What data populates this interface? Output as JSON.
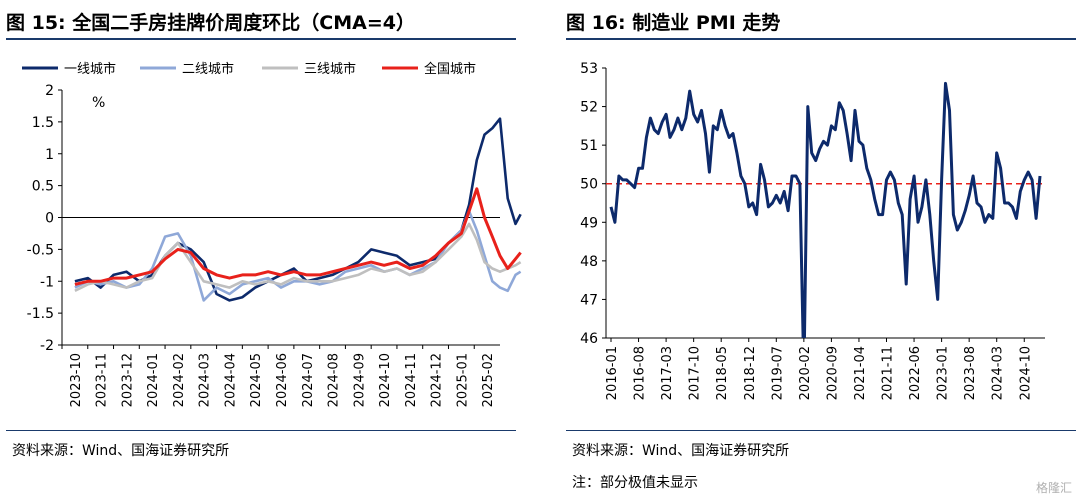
{
  "left": {
    "title": "图 15:  全国二手房挂牌价周度环比（CMA=4）",
    "source": "资料来源：Wind、国海证券研究所",
    "unit": "%",
    "chart_data": {
      "type": "line",
      "ylim": [
        -2,
        2
      ],
      "yticks": [
        "2",
        "1.5",
        "1",
        "0.5",
        "0",
        "-0.5",
        "-1",
        "-1.5",
        "-2"
      ],
      "ytick_values": [
        2,
        1.5,
        1,
        0.5,
        0,
        -0.5,
        -1,
        -1.5,
        -2
      ],
      "xticks": [
        "2023-10",
        "2023-11",
        "2023-12",
        "2024-01",
        "2024-02",
        "2024-03",
        "2024-04",
        "2024-05",
        "2024-06",
        "2024-07",
        "2024-08",
        "2024-09",
        "2024-10",
        "2024-11",
        "2024-12",
        "2025-01",
        "2025-02"
      ],
      "legend_position": "top",
      "x_months": [
        0,
        0.5,
        1,
        1.5,
        2,
        2.5,
        3,
        3.5,
        4,
        4.5,
        5,
        5.5,
        6,
        6.5,
        7,
        7.5,
        8,
        8.5,
        9,
        9.5,
        10,
        10.5,
        11,
        11.5,
        12,
        12.5,
        13,
        13.5,
        14,
        14.5,
        15,
        15.3,
        15.6,
        15.9,
        16.2,
        16.5,
        16.8,
        17.1,
        17.3
      ],
      "series": [
        {
          "name": "一线城市",
          "color": "#0d2a6b",
          "values": [
            -1.0,
            -0.95,
            -1.1,
            -0.9,
            -0.85,
            -1.0,
            -0.9,
            -0.6,
            -0.4,
            -0.5,
            -0.7,
            -1.2,
            -1.3,
            -1.25,
            -1.1,
            -1.0,
            -0.9,
            -0.8,
            -1.0,
            -0.95,
            -0.9,
            -0.8,
            -0.7,
            -0.5,
            -0.55,
            -0.6,
            -0.75,
            -0.7,
            -0.65,
            -0.4,
            -0.2,
            0.2,
            0.9,
            1.3,
            1.4,
            1.55,
            0.3,
            -0.1,
            0.05
          ]
        },
        {
          "name": "二线城市",
          "color": "#8fa8d8",
          "values": [
            -1.1,
            -1.0,
            -1.05,
            -1.0,
            -1.1,
            -1.05,
            -0.8,
            -0.3,
            -0.25,
            -0.6,
            -1.3,
            -1.1,
            -1.2,
            -1.05,
            -1.0,
            -0.95,
            -1.1,
            -1.0,
            -1.0,
            -1.05,
            -1.0,
            -0.85,
            -0.8,
            -0.75,
            -0.85,
            -0.8,
            -0.9,
            -0.8,
            -0.7,
            -0.4,
            -0.2,
            0.1,
            -0.2,
            -0.6,
            -1.0,
            -1.1,
            -1.15,
            -0.9,
            -0.85
          ]
        },
        {
          "name": "三线城市",
          "color": "#bfbfbf",
          "values": [
            -1.15,
            -1.05,
            -1.0,
            -1.05,
            -1.1,
            -1.0,
            -0.95,
            -0.6,
            -0.4,
            -0.7,
            -1.0,
            -1.05,
            -1.1,
            -1.0,
            -1.05,
            -1.0,
            -1.05,
            -0.95,
            -1.0,
            -1.0,
            -1.0,
            -0.95,
            -0.9,
            -0.8,
            -0.85,
            -0.8,
            -0.9,
            -0.85,
            -0.7,
            -0.5,
            -0.3,
            -0.1,
            -0.35,
            -0.7,
            -0.8,
            -0.85,
            -0.8,
            -0.75,
            -0.7
          ]
        },
        {
          "name": "全国城市",
          "color": "#e8211b",
          "values": [
            -1.05,
            -1.0,
            -1.0,
            -0.95,
            -0.95,
            -0.9,
            -0.85,
            -0.65,
            -0.5,
            -0.55,
            -0.8,
            -0.9,
            -0.95,
            -0.9,
            -0.9,
            -0.85,
            -0.9,
            -0.85,
            -0.9,
            -0.9,
            -0.85,
            -0.8,
            -0.75,
            -0.7,
            -0.75,
            -0.7,
            -0.8,
            -0.75,
            -0.6,
            -0.4,
            -0.25,
            0.1,
            0.45,
            0.0,
            -0.3,
            -0.6,
            -0.8,
            -0.65,
            -0.55
          ]
        }
      ]
    }
  },
  "right": {
    "title": "图 16:  制造业 PMI 走势",
    "source": "资料来源：Wind、国海证券研究所",
    "note": "注：部分极值未显示",
    "chart_data": {
      "type": "line",
      "ylim": [
        46,
        53
      ],
      "yticks": [
        "53",
        "52",
        "51",
        "50",
        "49",
        "48",
        "47",
        "46"
      ],
      "ytick_values": [
        53,
        52,
        51,
        50,
        49,
        48,
        47,
        46
      ],
      "xticks": [
        "2016-01",
        "2016-08",
        "2017-03",
        "2017-10",
        "2018-05",
        "2018-12",
        "2019-07",
        "2020-02",
        "2020-09",
        "2021-04",
        "2021-11",
        "2022-06",
        "2023-01",
        "2023-08",
        "2024-03",
        "2024-10"
      ],
      "reference_line": {
        "value": 50,
        "color": "#e8211b",
        "style": "dashed"
      },
      "series": [
        {
          "name": "",
          "color": "#0d2a6b",
          "values": [
            49.4,
            49.0,
            50.2,
            50.1,
            50.1,
            50.0,
            49.9,
            50.4,
            50.4,
            51.2,
            51.7,
            51.4,
            51.3,
            51.6,
            51.8,
            51.2,
            51.4,
            51.7,
            51.4,
            51.7,
            52.4,
            51.8,
            51.6,
            51.9,
            51.3,
            50.3,
            51.5,
            51.4,
            51.9,
            51.5,
            51.2,
            51.3,
            50.8,
            50.2,
            50.0,
            49.4,
            49.5,
            49.2,
            50.5,
            50.1,
            49.4,
            49.5,
            49.7,
            49.5,
            49.8,
            49.3,
            50.2,
            50.2,
            50.0,
            35.7,
            52.0,
            50.8,
            50.6,
            50.9,
            51.1,
            51.0,
            51.5,
            51.4,
            52.1,
            51.9,
            51.3,
            50.6,
            51.9,
            51.1,
            51.0,
            50.4,
            50.1,
            49.6,
            49.2,
            49.2,
            50.1,
            50.3,
            50.1,
            49.5,
            49.2,
            47.4,
            49.6,
            50.2,
            49.0,
            49.4,
            50.1,
            49.2,
            48.0,
            47.0,
            50.1,
            52.6,
            51.9,
            49.2,
            48.8,
            49.0,
            49.3,
            49.7,
            50.2,
            49.5,
            49.4,
            49.0,
            49.2,
            49.1,
            50.8,
            50.4,
            49.5,
            49.5,
            49.4,
            49.1,
            49.8,
            50.1,
            50.3,
            50.1,
            49.1,
            50.2
          ]
        }
      ]
    }
  },
  "watermark": "格隆汇"
}
